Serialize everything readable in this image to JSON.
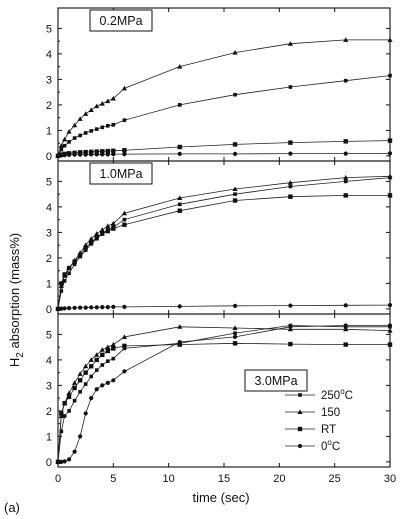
{
  "figure_label": "(a)",
  "chart_data": {
    "type": "line",
    "xlabel": "time (sec)",
    "ylabel_main": "H",
    "ylabel_sub": "2",
    "ylabel_rest": " absorption (mass%)",
    "xlim": [
      0,
      30
    ],
    "x_ticks": [
      "0",
      "5",
      "10",
      "15",
      "20",
      "25",
      "30"
    ],
    "grid": false,
    "legend": {
      "placement": "inside bottom-right of third panel",
      "entries": [
        {
          "key": "250",
          "label_main": "250",
          "label_sup": "o",
          "label_unit": "C",
          "marker": "square"
        },
        {
          "key": "150",
          "label_main": "150",
          "label_sup": "",
          "label_unit": "",
          "marker": "triangle"
        },
        {
          "key": "RT",
          "label_main": "RT",
          "label_sup": "",
          "label_unit": "",
          "marker": "square-filled"
        },
        {
          "key": "0",
          "label_main": "0",
          "label_sup": "o",
          "label_unit": "C",
          "marker": "circle"
        }
      ]
    },
    "panels": [
      {
        "label": "0.2MPa",
        "ylim": [
          -0.2,
          5.8
        ],
        "y_ticks": [
          "0",
          "1",
          "2",
          "3",
          "4",
          "5"
        ],
        "series": [
          {
            "key": "150",
            "marker": "triangle",
            "x": [
              0,
              0.3,
              0.6,
              1,
              1.5,
              2,
              2.5,
              3,
              3.5,
              4,
              4.5,
              5,
              6,
              11,
              16,
              21,
              26,
              30
            ],
            "y": [
              0,
              0.4,
              0.65,
              0.95,
              1.2,
              1.45,
              1.65,
              1.8,
              1.95,
              2.05,
              2.15,
              2.25,
              2.65,
              3.5,
              4.05,
              4.4,
              4.55,
              4.55
            ]
          },
          {
            "key": "250",
            "marker": "square",
            "x": [
              0,
              0.3,
              0.6,
              1,
              1.5,
              2,
              2.5,
              3,
              3.5,
              4,
              4.5,
              5,
              6,
              11,
              16,
              21,
              26,
              30
            ],
            "y": [
              0,
              0.25,
              0.4,
              0.55,
              0.7,
              0.8,
              0.9,
              0.98,
              1.05,
              1.12,
              1.18,
              1.22,
              1.4,
              2.0,
              2.4,
              2.7,
              2.95,
              3.15
            ]
          },
          {
            "key": "RT",
            "marker": "square-filled",
            "x": [
              0,
              0.3,
              0.6,
              1,
              1.5,
              2,
              2.5,
              3,
              3.5,
              4,
              4.5,
              5,
              6,
              11,
              16,
              21,
              26,
              30
            ],
            "y": [
              0,
              0.05,
              0.08,
              0.1,
              0.12,
              0.14,
              0.15,
              0.16,
              0.17,
              0.18,
              0.19,
              0.2,
              0.22,
              0.35,
              0.45,
              0.52,
              0.57,
              0.6
            ]
          },
          {
            "key": "0",
            "marker": "circle",
            "x": [
              0,
              0.3,
              0.6,
              1,
              1.5,
              2,
              2.5,
              3,
              3.5,
              4,
              4.5,
              5,
              6,
              11,
              16,
              21,
              26,
              30
            ],
            "y": [
              0,
              0.02,
              0.03,
              0.04,
              0.05,
              0.05,
              0.05,
              0.06,
              0.06,
              0.06,
              0.06,
              0.07,
              0.07,
              0.08,
              0.08,
              0.09,
              0.09,
              0.1
            ]
          }
        ]
      },
      {
        "label": "1.0MPa",
        "ylim": [
          -0.2,
          5.8
        ],
        "y_ticks": [
          "0",
          "1",
          "2",
          "3",
          "4",
          "5"
        ],
        "series": [
          {
            "key": "150",
            "marker": "triangle",
            "x": [
              0,
              0.3,
              0.6,
              1,
              1.5,
              2,
              2.5,
              3,
              3.5,
              4,
              4.5,
              5,
              6,
              11,
              16,
              21,
              26,
              30
            ],
            "y": [
              0,
              0.9,
              1.3,
              1.6,
              1.9,
              2.2,
              2.5,
              2.75,
              2.95,
              3.1,
              3.25,
              3.35,
              3.75,
              4.35,
              4.7,
              4.95,
              5.15,
              5.2
            ]
          },
          {
            "key": "250",
            "marker": "square",
            "x": [
              0,
              0.3,
              0.6,
              1,
              1.5,
              2,
              2.5,
              3,
              3.5,
              4,
              4.5,
              5,
              6,
              11,
              16,
              21,
              26,
              30
            ],
            "y": [
              0,
              0.7,
              1.1,
              1.4,
              1.75,
              2.05,
              2.3,
              2.55,
              2.75,
              2.95,
              3.1,
              3.2,
              3.5,
              4.1,
              4.5,
              4.8,
              5.0,
              5.15
            ]
          },
          {
            "key": "RT",
            "marker": "square-filled",
            "x": [
              0,
              0.3,
              0.6,
              1,
              1.5,
              2,
              2.5,
              3,
              3.5,
              4,
              4.5,
              5,
              6,
              11,
              16,
              21,
              26,
              30
            ],
            "y": [
              0,
              1.0,
              1.35,
              1.6,
              1.85,
              2.1,
              2.4,
              2.6,
              2.8,
              2.95,
              3.05,
              3.15,
              3.3,
              3.85,
              4.25,
              4.4,
              4.45,
              4.45
            ]
          },
          {
            "key": "0",
            "marker": "circle",
            "x": [
              0,
              0.3,
              0.6,
              1,
              1.5,
              2,
              2.5,
              3,
              3.5,
              4,
              4.5,
              5,
              6,
              11,
              16,
              21,
              26,
              30
            ],
            "y": [
              0,
              0.01,
              0.02,
              0.03,
              0.04,
              0.05,
              0.05,
              0.06,
              0.06,
              0.07,
              0.07,
              0.08,
              0.08,
              0.1,
              0.12,
              0.13,
              0.14,
              0.15
            ]
          }
        ]
      },
      {
        "label": "3.0MPa",
        "ylim": [
          -0.2,
          5.8
        ],
        "y_ticks": [
          "0",
          "1",
          "2",
          "3",
          "4",
          "5"
        ],
        "series": [
          {
            "key": "150",
            "marker": "triangle",
            "x": [
              0,
              0.3,
              0.6,
              1,
              1.5,
              2,
              2.5,
              3,
              3.5,
              4,
              4.5,
              5,
              6,
              11,
              16,
              21,
              26,
              30
            ],
            "y": [
              0,
              1.8,
              2.3,
              2.7,
              3.1,
              3.45,
              3.75,
              4.0,
              4.2,
              4.4,
              4.5,
              4.6,
              4.9,
              5.3,
              5.25,
              5.2,
              5.2,
              5.15
            ]
          },
          {
            "key": "250",
            "marker": "square",
            "x": [
              0,
              0.3,
              0.6,
              1,
              1.5,
              2,
              2.5,
              3,
              3.5,
              4,
              4.5,
              5,
              6,
              11,
              16,
              21,
              26,
              30
            ],
            "y": [
              0,
              1.2,
              1.8,
              2.0,
              2.4,
              2.75,
              3.05,
              3.35,
              3.6,
              3.8,
              3.95,
              4.05,
              4.45,
              4.65,
              5.05,
              5.35,
              5.3,
              5.3
            ]
          },
          {
            "key": "RT",
            "marker": "square-filled",
            "x": [
              0,
              0.3,
              0.6,
              1,
              1.5,
              2,
              2.5,
              3,
              3.5,
              4,
              4.5,
              5,
              6,
              11,
              16,
              21,
              26,
              30
            ],
            "y": [
              0,
              1.9,
              2.3,
              2.55,
              2.9,
              3.2,
              3.5,
              3.75,
              4.0,
              4.2,
              4.35,
              4.45,
              4.55,
              4.6,
              4.65,
              4.62,
              4.6,
              4.6
            ]
          },
          {
            "key": "0",
            "marker": "circle",
            "x": [
              0,
              0.3,
              0.6,
              1,
              1.5,
              2,
              2.5,
              3,
              3.5,
              4,
              4.5,
              5,
              6,
              11,
              16,
              21,
              26,
              30
            ],
            "y": [
              0,
              0,
              0.02,
              0.1,
              0.4,
              1.0,
              1.9,
              2.5,
              2.85,
              3.0,
              3.1,
              3.2,
              3.55,
              4.7,
              4.9,
              5.3,
              5.35,
              5.35
            ]
          }
        ]
      }
    ]
  }
}
